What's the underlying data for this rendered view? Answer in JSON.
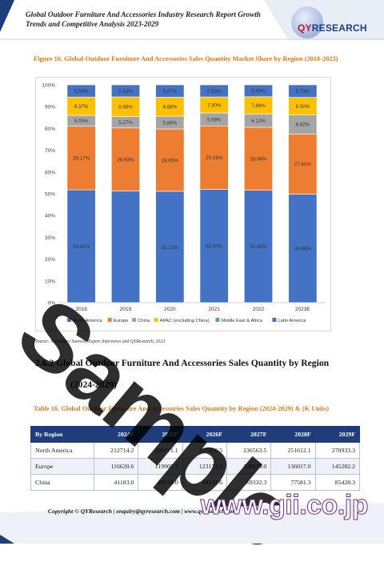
{
  "header": {
    "title": "Global Outdoor Furniture And Accessories Industry Research Report Growth Trends and Competitive Analysis 2023-2029",
    "logo_qy": "QY",
    "logo_research": "RESEARCH"
  },
  "figure": {
    "caption": "Figure 16.  Global Outdoor Furniture And Accessories Sales Quantity Market Share by Region (2018-2023)"
  },
  "chart_data": {
    "type": "bar",
    "stacked": true,
    "categories": [
      "2018",
      "2019",
      "2020",
      "2021",
      "2022",
      "2023E"
    ],
    "ylim": [
      0,
      100
    ],
    "ytick_labels": [
      "0%",
      "10%",
      "20%",
      "30%",
      "40%",
      "50%",
      "60%",
      "70%",
      "80%",
      "90%",
      "100%"
    ],
    "series": [
      {
        "name": "North America",
        "color": "#4472c4",
        "values": [
          51.81,
          51.3,
          51.12,
          52.0,
          51.6,
          49.84
        ],
        "labels": [
          "51.81%",
          "",
          "51.12%",
          "52.00%",
          "51.60%",
          "49.84%"
        ]
      },
      {
        "name": "Europe",
        "color": "#ed7d31",
        "values": [
          29.17,
          28.93,
          28.65,
          29.16,
          28.94,
          27.61
        ],
        "labels": [
          "29.17%",
          "28.93%",
          "28.65%",
          "29.16%",
          "28.94%",
          "27.61%"
        ]
      },
      {
        "name": "China",
        "color": "#a5a5a5",
        "values": [
          5.05,
          5.27,
          5.88,
          5.98,
          6.12,
          8.82
        ],
        "labels": [
          "5.05%",
          "5.27%",
          "5.88%",
          "5.98%",
          "6.12%",
          "8.82%"
        ]
      },
      {
        "name": "APAC (excluding China)",
        "color": "#ffc000",
        "values": [
          8.37,
          8.98,
          8.68,
          7.3,
          7.89,
          8.0
        ],
        "labels": [
          "8.37%",
          "8.98%",
          "8.68%",
          "7.30%",
          "7.89%",
          "8.00%"
        ]
      },
      {
        "name": "Middle East & Africa",
        "color": "#5b9bd5",
        "values": [
          0.01,
          0.0,
          0.0,
          0.01,
          0.0,
          0.0
        ],
        "labels": [
          "",
          "",
          "",
          "",
          "",
          ""
        ]
      },
      {
        "name": "Latin America",
        "color": "#4472c4",
        "values": [
          5.59,
          5.52,
          5.67,
          5.55,
          5.45,
          5.73
        ],
        "labels": [
          "5.59%",
          "5.52%",
          "5.67%",
          "5.55%",
          "5.45%",
          "5.73%"
        ]
      }
    ],
    "legend_position": "bottom",
    "grid": false
  },
  "source": "Source: Secondary Sources, Expert Interviews and QYResearch, 2023",
  "section": {
    "number_title": "2.6.2  Global Outdoor Furniture And Accessories Sales Quantity by Region",
    "years": "(2024-2029)"
  },
  "table": {
    "caption": "Table 16.  Global Outdoor Furniture And Accessories Sales Quantity by Region (2024-2029) & (K Units)",
    "headers": [
      "By Region",
      "2024F",
      "2025F",
      "2026F",
      "2027F",
      "2028F",
      "2029F"
    ],
    "rows": [
      [
        "North America",
        "212714.2",
        "220171.1",
        "227470.5",
        "236563.5",
        "251612.1",
        "270933.3"
      ],
      [
        "Europe",
        "116620.6",
        "119907.3",
        "123171.0",
        "128679.0",
        "136017.0",
        "145282.2"
      ],
      [
        "China",
        "41183.0",
        "49518.0",
        "60137.6",
        "69332.3",
        "77581.3",
        "85428.3"
      ]
    ]
  },
  "watermark": "Sample",
  "footer": {
    "copyright": "Copyright © QYResearch | enquiry@qyresearch.com | www.qyresearch.com",
    "gii": "www.gii.co.jp"
  },
  "colors": {
    "accent_orange": "#e07a10",
    "table_header": "#1f3d7a",
    "brand_blue": "#1a3f8f",
    "brand_red": "#c8102e"
  }
}
